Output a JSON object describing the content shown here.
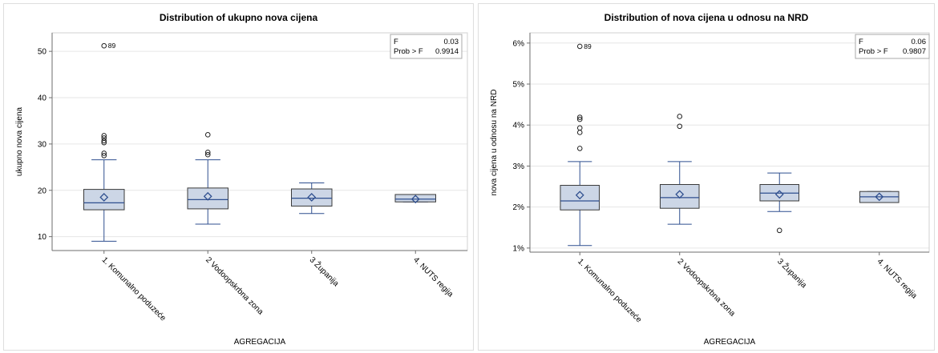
{
  "chart_data": [
    {
      "type": "box",
      "title": "Distribution of ukupno nova cijena",
      "xlabel": "AGREGACIJA",
      "ylabel": "ukupno nova cijena",
      "ylim": [
        7,
        54
      ],
      "yticks": [
        10,
        20,
        30,
        40,
        50
      ],
      "ytick_labels": [
        "10",
        "20",
        "30",
        "40",
        "50"
      ],
      "grid": true,
      "stats_box": {
        "placement": "top-right",
        "rows": [
          [
            "F",
            "0.03"
          ],
          [
            "Prob > F",
            "0.9914"
          ]
        ]
      },
      "categories": [
        "1. Komunalno poduzeće",
        "2 Vodoopskrbna zona",
        "3 Županija",
        "4. NUTS regija"
      ],
      "boxes": [
        {
          "min": 9.0,
          "q1": 15.8,
          "median": 17.3,
          "q3": 20.2,
          "max": 26.6,
          "mean": 18.5,
          "outliers": [
            27.5,
            28.0,
            30.3,
            30.7,
            31.3,
            31.8,
            51.2
          ],
          "outlier_labels": [
            {
              "value": 51.2,
              "label": "89"
            }
          ]
        },
        {
          "min": 12.7,
          "q1": 16.0,
          "median": 18.0,
          "q3": 20.5,
          "max": 26.6,
          "mean": 18.7,
          "outliers": [
            27.7,
            28.2,
            32.0
          ],
          "outlier_labels": []
        },
        {
          "min": 15.0,
          "q1": 16.6,
          "median": 18.3,
          "q3": 20.3,
          "max": 21.6,
          "mean": 18.5,
          "outliers": [],
          "outlier_labels": []
        },
        {
          "min": 17.5,
          "q1": 17.5,
          "median": 18.1,
          "q3": 19.1,
          "max": 19.1,
          "mean": 18.1,
          "outliers": [],
          "outlier_labels": []
        }
      ]
    },
    {
      "type": "box",
      "title": "Distribution of nova cijena u odnosu na NRD",
      "xlabel": "AGREGACIJA",
      "ylabel": "nova cijena u odnosu na NRD",
      "ylim": [
        0.9,
        6.25
      ],
      "yticks": [
        1,
        2,
        3,
        4,
        5,
        6
      ],
      "ytick_labels": [
        "1%",
        "2%",
        "3%",
        "4%",
        "5%",
        "6%"
      ],
      "grid": true,
      "stats_box": {
        "placement": "top-right",
        "rows": [
          [
            "F",
            "0.06"
          ],
          [
            "Prob > F",
            "0.9807"
          ]
        ]
      },
      "categories": [
        "1. Komunalno poduzeće",
        "2 Vodoopskrbna zona",
        "3 Županija",
        "4. NUTS regija"
      ],
      "boxes": [
        {
          "min": 1.06,
          "q1": 1.93,
          "median": 2.15,
          "q3": 2.53,
          "max": 3.11,
          "mean": 2.29,
          "outliers": [
            3.43,
            3.82,
            3.93,
            4.14,
            4.19,
            5.92
          ],
          "outlier_labels": [
            {
              "value": 5.92,
              "label": "89"
            }
          ]
        },
        {
          "min": 1.58,
          "q1": 1.97,
          "median": 2.23,
          "q3": 2.55,
          "max": 3.11,
          "mean": 2.31,
          "outliers": [
            3.97,
            4.21
          ],
          "outlier_labels": []
        },
        {
          "min": 1.89,
          "q1": 2.15,
          "median": 2.34,
          "q3": 2.55,
          "max": 2.83,
          "mean": 2.31,
          "outliers": [
            1.43
          ],
          "outlier_labels": []
        },
        {
          "min": 2.11,
          "q1": 2.11,
          "median": 2.25,
          "q3": 2.38,
          "max": 2.38,
          "mean": 2.25,
          "outliers": [],
          "outlier_labels": []
        }
      ]
    }
  ],
  "colors": {
    "box_fill": "#ccd6e6",
    "box_stroke": "#2f4f8f",
    "whisker": "#2f4f8f",
    "mean_marker": "#2f4f8f",
    "grid": "#e6e6e6",
    "axis": "#6e6e6e"
  }
}
